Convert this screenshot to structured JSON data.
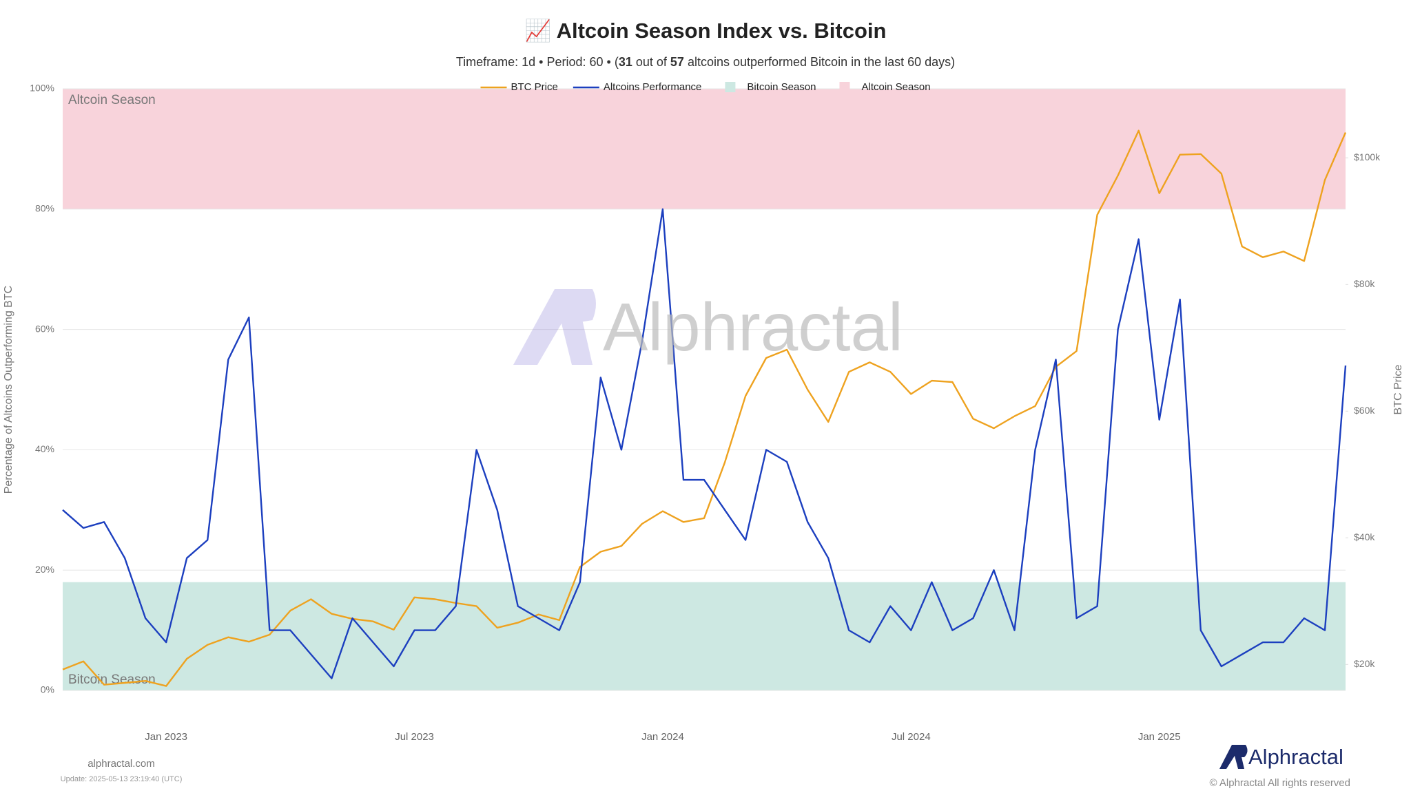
{
  "chart_data": {
    "type": "line",
    "title": "📈 Altcoin Season Index vs. Bitcoin",
    "subtitle_parts": [
      "Timeframe: 1d  •  Period: 60  •  (",
      "31",
      " out of ",
      "57",
      " altcoins outperformed Bitcoin in the last 60 days)"
    ],
    "y_label": "Percentage of Altcoins Outperforming BTC",
    "y2_label": "BTC Price",
    "legend": "top",
    "grid": true,
    "categories": [
      null,
      null,
      null,
      null,
      null,
      "Jan 2023",
      null,
      null,
      null,
      null,
      null,
      null,
      null,
      null,
      null,
      null,
      null,
      "Jul 2023",
      null,
      null,
      null,
      null,
      null,
      null,
      null,
      null,
      null,
      null,
      null,
      "Jan 2024",
      null,
      null,
      null,
      null,
      null,
      null,
      null,
      null,
      null,
      null,
      null,
      "Jul 2024",
      null,
      null,
      null,
      null,
      null,
      null,
      null,
      null,
      null,
      null,
      null,
      "Jan 2025",
      null,
      null,
      null,
      null,
      null,
      null,
      null,
      null,
      null
    ],
    "series": [
      {
        "name": "BTC Price",
        "color": "#eea21f",
        "axis": "y2",
        "values": [
          19200,
          20500,
          16800,
          17100,
          17400,
          16600,
          20900,
          23100,
          24300,
          23600,
          24700,
          28500,
          30300,
          28000,
          27200,
          26800,
          25500,
          30600,
          30300,
          29700,
          29200,
          25800,
          26600,
          27900,
          27000,
          35400,
          37800,
          38700,
          42200,
          44200,
          42500,
          43100,
          51900,
          62400,
          68400,
          69700,
          63400,
          58300,
          66200,
          67700,
          66200,
          62700,
          64800,
          64600,
          58800,
          57300,
          59200,
          60800,
          67000,
          69500,
          91000,
          97200,
          104300,
          94400,
          100500,
          100600,
          97500,
          86000,
          84300,
          85200,
          83700,
          96500,
          104000
        ]
      },
      {
        "name": "Altcoins Performance",
        "color": "#1c3fbf",
        "values": [
          30,
          27,
          28,
          22,
          12,
          8,
          22,
          25,
          55,
          62,
          10,
          10,
          6,
          2,
          12,
          8,
          4,
          10,
          10,
          14,
          40,
          30,
          14,
          12,
          10,
          18,
          52,
          40,
          58,
          80,
          35,
          35,
          30,
          25,
          40,
          38,
          28,
          22,
          10,
          8,
          14,
          10,
          18,
          10,
          12,
          20,
          10,
          40,
          55,
          12,
          14,
          60,
          75,
          45,
          65,
          10,
          4,
          6,
          8,
          8,
          12,
          10,
          54
        ]
      }
    ],
    "bands": [
      {
        "name": "Bitcoin Season",
        "from": 0,
        "to": 18,
        "color": "#cde8e2"
      },
      {
        "name": "Altcoin Season",
        "from": 80,
        "to": 100,
        "color": "#f8d3db"
      }
    ],
    "ylim": [
      0,
      100
    ],
    "yticks": [
      {
        "value": 0,
        "label": "0%"
      },
      {
        "value": 20,
        "label": "20%"
      },
      {
        "value": 40,
        "label": "40%"
      },
      {
        "value": 60,
        "label": "60%"
      },
      {
        "value": 80,
        "label": "80%"
      },
      {
        "value": 100,
        "label": "100%"
      }
    ],
    "y2lim": [
      15900,
      110900
    ],
    "y2ticks": [
      {
        "value": 20000,
        "label": "$20k"
      },
      {
        "value": 40000,
        "label": "$40k"
      },
      {
        "value": 60000,
        "label": "$60k"
      },
      {
        "value": 80000,
        "label": "$80k"
      },
      {
        "value": 100000,
        "label": "$100k"
      }
    ]
  },
  "watermark": "Alphractal",
  "footer": {
    "site": "alphractal.com",
    "update": "Update: 2025-05-13 23:19:40 (UTC)",
    "brand": "Alphractal",
    "copyright": "© Alphractal All rights reserved"
  }
}
